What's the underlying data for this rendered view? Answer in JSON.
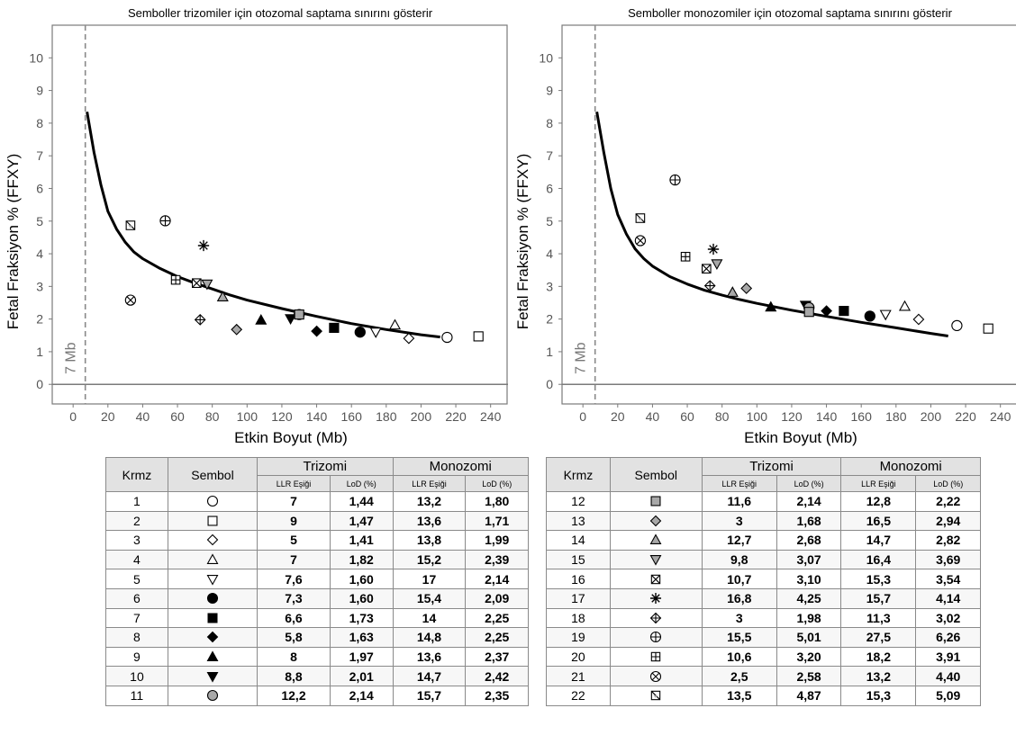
{
  "charts": [
    {
      "title": "Semboller trizomiler için otozomal saptama sınırını gösterir",
      "xlabel": "Etkin Boyut (Mb)",
      "ylabel": "Fetal Fraksiyon % (FFXY)",
      "vline_label": "7 Mb"
    },
    {
      "title": "Semboller monozomiler için otozomal saptama sınırını gösterir",
      "xlabel": "Etkin Boyut (Mb)",
      "ylabel": "Fetal Fraksiyon % (FFXY)",
      "vline_label": "7 Mb"
    }
  ],
  "chart_data": [
    {
      "type": "scatter",
      "title": "Semboller trizomiler için otozomal saptama sınırını gösterir",
      "xlabel": "Etkin Boyut (Mb)",
      "ylabel": "Fetal Fraksiyon % (FFXY)",
      "xlim": [
        -12,
        250
      ],
      "ylim": [
        -0.6,
        11
      ],
      "xticks": [
        0,
        20,
        40,
        60,
        80,
        100,
        120,
        140,
        160,
        180,
        200,
        220,
        240
      ],
      "yticks": [
        0,
        1,
        2,
        3,
        4,
        5,
        6,
        7,
        8,
        9,
        10
      ],
      "vline": 7,
      "hline": 0,
      "grid": false,
      "points": [
        {
          "chr": 1,
          "x": 215,
          "y": 1.44
        },
        {
          "chr": 2,
          "x": 233,
          "y": 1.47
        },
        {
          "chr": 3,
          "x": 193,
          "y": 1.41
        },
        {
          "chr": 4,
          "x": 185,
          "y": 1.82
        },
        {
          "chr": 5,
          "x": 174,
          "y": 1.6
        },
        {
          "chr": 6,
          "x": 165,
          "y": 1.6
        },
        {
          "chr": 7,
          "x": 150,
          "y": 1.73
        },
        {
          "chr": 8,
          "x": 140,
          "y": 1.63
        },
        {
          "chr": 9,
          "x": 108,
          "y": 1.97
        },
        {
          "chr": 10,
          "x": 125,
          "y": 2.01
        },
        {
          "chr": 11,
          "x": 130,
          "y": 2.14
        },
        {
          "chr": 12,
          "x": 130,
          "y": 2.14
        },
        {
          "chr": 13,
          "x": 94,
          "y": 1.68
        },
        {
          "chr": 14,
          "x": 86,
          "y": 2.68
        },
        {
          "chr": 15,
          "x": 77,
          "y": 3.07
        },
        {
          "chr": 16,
          "x": 71,
          "y": 3.1
        },
        {
          "chr": 17,
          "x": 75,
          "y": 4.25
        },
        {
          "chr": 18,
          "x": 73,
          "y": 1.98
        },
        {
          "chr": 19,
          "x": 53,
          "y": 5.01
        },
        {
          "chr": 20,
          "x": 59,
          "y": 3.2
        },
        {
          "chr": 21,
          "x": 33,
          "y": 2.58
        },
        {
          "chr": 22,
          "x": 33,
          "y": 4.87
        }
      ],
      "curve": [
        [
          8,
          8.35
        ],
        [
          12,
          7.1
        ],
        [
          16,
          6.1
        ],
        [
          20,
          5.3
        ],
        [
          25,
          4.75
        ],
        [
          30,
          4.35
        ],
        [
          35,
          4.05
        ],
        [
          40,
          3.85
        ],
        [
          50,
          3.55
        ],
        [
          60,
          3.3
        ],
        [
          70,
          3.1
        ],
        [
          80,
          2.92
        ],
        [
          90,
          2.74
        ],
        [
          100,
          2.58
        ],
        [
          120,
          2.32
        ],
        [
          140,
          2.08
        ],
        [
          160,
          1.86
        ],
        [
          180,
          1.68
        ],
        [
          200,
          1.52
        ],
        [
          211,
          1.45
        ]
      ]
    },
    {
      "type": "scatter",
      "title": "Semboller monozomiler için otozomal saptama sınırını gösterir",
      "xlabel": "Etkin Boyut (Mb)",
      "ylabel": "Fetal Fraksiyon % (FFXY)",
      "xlim": [
        -12,
        250
      ],
      "ylim": [
        -0.6,
        11
      ],
      "xticks": [
        0,
        20,
        40,
        60,
        80,
        100,
        120,
        140,
        160,
        180,
        200,
        220,
        240
      ],
      "yticks": [
        0,
        1,
        2,
        3,
        4,
        5,
        6,
        7,
        8,
        9,
        10
      ],
      "vline": 7,
      "hline": 0,
      "grid": false,
      "points": [
        {
          "chr": 1,
          "x": 215,
          "y": 1.8
        },
        {
          "chr": 2,
          "x": 233,
          "y": 1.71
        },
        {
          "chr": 3,
          "x": 193,
          "y": 1.99
        },
        {
          "chr": 4,
          "x": 185,
          "y": 2.39
        },
        {
          "chr": 5,
          "x": 174,
          "y": 2.14
        },
        {
          "chr": 6,
          "x": 165,
          "y": 2.09
        },
        {
          "chr": 7,
          "x": 150,
          "y": 2.25
        },
        {
          "chr": 8,
          "x": 140,
          "y": 2.25
        },
        {
          "chr": 9,
          "x": 108,
          "y": 2.37
        },
        {
          "chr": 10,
          "x": 128,
          "y": 2.42
        },
        {
          "chr": 11,
          "x": 130,
          "y": 2.35
        },
        {
          "chr": 12,
          "x": 130,
          "y": 2.22
        },
        {
          "chr": 13,
          "x": 94,
          "y": 2.94
        },
        {
          "chr": 14,
          "x": 86,
          "y": 2.82
        },
        {
          "chr": 15,
          "x": 77,
          "y": 3.69
        },
        {
          "chr": 16,
          "x": 71,
          "y": 3.54
        },
        {
          "chr": 17,
          "x": 75,
          "y": 4.14
        },
        {
          "chr": 18,
          "x": 73,
          "y": 3.02
        },
        {
          "chr": 19,
          "x": 53,
          "y": 6.26
        },
        {
          "chr": 20,
          "x": 59,
          "y": 3.91
        },
        {
          "chr": 21,
          "x": 33,
          "y": 4.4
        },
        {
          "chr": 22,
          "x": 33,
          "y": 5.09
        }
      ],
      "curve": [
        [
          8,
          8.35
        ],
        [
          12,
          7.1
        ],
        [
          16,
          6.0
        ],
        [
          20,
          5.2
        ],
        [
          25,
          4.6
        ],
        [
          30,
          4.15
        ],
        [
          35,
          3.85
        ],
        [
          40,
          3.62
        ],
        [
          50,
          3.3
        ],
        [
          60,
          3.07
        ],
        [
          70,
          2.88
        ],
        [
          80,
          2.73
        ],
        [
          90,
          2.6
        ],
        [
          100,
          2.48
        ],
        [
          120,
          2.27
        ],
        [
          140,
          2.08
        ],
        [
          160,
          1.9
        ],
        [
          180,
          1.73
        ],
        [
          200,
          1.56
        ],
        [
          210,
          1.48
        ]
      ]
    }
  ],
  "symbols": [
    "circle-open",
    "square-open",
    "diamond-open",
    "triangle-up-open",
    "triangle-down-open",
    "circle-filled",
    "square-filled",
    "diamond-filled",
    "triangle-up-filled",
    "triangle-down-filled",
    "circle-gray",
    "square-gray",
    "diamond-gray",
    "triangle-up-gray",
    "triangle-down-gray",
    "square-x",
    "asterisk",
    "diamond-plus",
    "circle-plus",
    "square-plus",
    "circle-x",
    "square-diagonal"
  ],
  "table": {
    "headers": {
      "krmz": "Krmz",
      "sembol": "Sembol",
      "trizomi": "Trizomi",
      "monozomi": "Monozomi",
      "llr": "LLR Eşiği",
      "lod": "LoD (%)"
    },
    "rows_left": [
      {
        "krmz": "1",
        "tri_llr": "7",
        "tri_lod": "1,44",
        "mono_llr": "13,2",
        "mono_lod": "1,80"
      },
      {
        "krmz": "2",
        "tri_llr": "9",
        "tri_lod": "1,47",
        "mono_llr": "13,6",
        "mono_lod": "1,71"
      },
      {
        "krmz": "3",
        "tri_llr": "5",
        "tri_lod": "1,41",
        "mono_llr": "13,8",
        "mono_lod": "1,99"
      },
      {
        "krmz": "4",
        "tri_llr": "7",
        "tri_lod": "1,82",
        "mono_llr": "15,2",
        "mono_lod": "2,39"
      },
      {
        "krmz": "5",
        "tri_llr": "7,6",
        "tri_lod": "1,60",
        "mono_llr": "17",
        "mono_lod": "2,14"
      },
      {
        "krmz": "6",
        "tri_llr": "7,3",
        "tri_lod": "1,60",
        "mono_llr": "15,4",
        "mono_lod": "2,09"
      },
      {
        "krmz": "7",
        "tri_llr": "6,6",
        "tri_lod": "1,73",
        "mono_llr": "14",
        "mono_lod": "2,25"
      },
      {
        "krmz": "8",
        "tri_llr": "5,8",
        "tri_lod": "1,63",
        "mono_llr": "14,8",
        "mono_lod": "2,25"
      },
      {
        "krmz": "9",
        "tri_llr": "8",
        "tri_lod": "1,97",
        "mono_llr": "13,6",
        "mono_lod": "2,37"
      },
      {
        "krmz": "10",
        "tri_llr": "8,8",
        "tri_lod": "2,01",
        "mono_llr": "14,7",
        "mono_lod": "2,42"
      },
      {
        "krmz": "11",
        "tri_llr": "12,2",
        "tri_lod": "2,14",
        "mono_llr": "15,7",
        "mono_lod": "2,35"
      }
    ],
    "rows_right": [
      {
        "krmz": "12",
        "tri_llr": "11,6",
        "tri_lod": "2,14",
        "mono_llr": "12,8",
        "mono_lod": "2,22"
      },
      {
        "krmz": "13",
        "tri_llr": "3",
        "tri_lod": "1,68",
        "mono_llr": "16,5",
        "mono_lod": "2,94"
      },
      {
        "krmz": "14",
        "tri_llr": "12,7",
        "tri_lod": "2,68",
        "mono_llr": "14,7",
        "mono_lod": "2,82"
      },
      {
        "krmz": "15",
        "tri_llr": "9,8",
        "tri_lod": "3,07",
        "mono_llr": "16,4",
        "mono_lod": "3,69"
      },
      {
        "krmz": "16",
        "tri_llr": "10,7",
        "tri_lod": "3,10",
        "mono_llr": "15,3",
        "mono_lod": "3,54"
      },
      {
        "krmz": "17",
        "tri_llr": "16,8",
        "tri_lod": "4,25",
        "mono_llr": "15,7",
        "mono_lod": "4,14"
      },
      {
        "krmz": "18",
        "tri_llr": "3",
        "tri_lod": "1,98",
        "mono_llr": "11,3",
        "mono_lod": "3,02"
      },
      {
        "krmz": "19",
        "tri_llr": "15,5",
        "tri_lod": "5,01",
        "mono_llr": "27,5",
        "mono_lod": "6,26"
      },
      {
        "krmz": "20",
        "tri_llr": "10,6",
        "tri_lod": "3,20",
        "mono_llr": "18,2",
        "mono_lod": "3,91"
      },
      {
        "krmz": "21",
        "tri_llr": "2,5",
        "tri_lod": "2,58",
        "mono_llr": "13,2",
        "mono_lod": "4,40"
      },
      {
        "krmz": "22",
        "tri_llr": "13,5",
        "tri_lod": "4,87",
        "mono_llr": "15,3",
        "mono_lod": "5,09"
      }
    ]
  }
}
